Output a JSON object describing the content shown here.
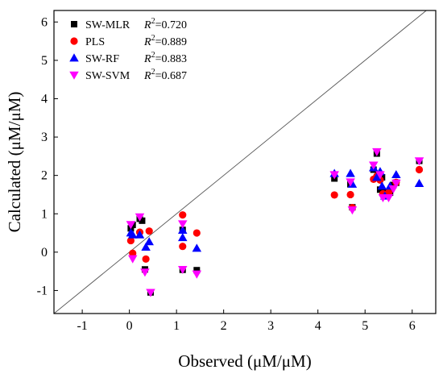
{
  "chart_data": {
    "type": "scatter",
    "xlabel": "Observed (μM/μM)",
    "ylabel": "Calculated (μM/μM)",
    "xlim": [
      -1.6,
      6.5
    ],
    "ylim": [
      -1.6,
      6.3
    ],
    "xticks": [
      -1,
      0,
      1,
      2,
      3,
      4,
      5,
      6
    ],
    "yticks": [
      -1,
      0,
      1,
      2,
      3,
      4,
      5,
      6
    ],
    "grid": false,
    "legend_position": "top-left",
    "reference_line": "y = x",
    "series": [
      {
        "name": "SW-MLR",
        "r2_label": "R",
        "r2_value": "=0.720",
        "marker": "square",
        "color": "#000000",
        "points": [
          [
            0.03,
            0.62
          ],
          [
            0.07,
            0.71
          ],
          [
            0.22,
            0.87
          ],
          [
            0.27,
            0.82
          ],
          [
            0.33,
            -0.45
          ],
          [
            0.45,
            -1.05
          ],
          [
            1.13,
            0.58
          ],
          [
            1.13,
            -0.46
          ],
          [
            1.43,
            -0.47
          ],
          [
            4.35,
            1.92
          ],
          [
            4.69,
            1.77
          ],
          [
            4.73,
            1.17
          ],
          [
            5.18,
            2.15
          ],
          [
            5.25,
            2.57
          ],
          [
            5.32,
            1.63
          ],
          [
            5.36,
            1.95
          ],
          [
            5.42,
            1.56
          ],
          [
            5.53,
            1.55
          ],
          [
            5.6,
            1.75
          ],
          [
            5.66,
            1.81
          ],
          [
            6.15,
            2.38
          ]
        ]
      },
      {
        "name": "PLS",
        "r2_label": "R",
        "r2_value": "=0.889",
        "marker": "circle",
        "color": "#ff0000",
        "points": [
          [
            0.03,
            0.3
          ],
          [
            0.07,
            -0.03
          ],
          [
            0.22,
            0.52
          ],
          [
            0.35,
            -0.18
          ],
          [
            0.42,
            0.55
          ],
          [
            1.13,
            0.97
          ],
          [
            1.13,
            0.15
          ],
          [
            1.43,
            0.5
          ],
          [
            4.35,
            1.49
          ],
          [
            4.69,
            1.5
          ],
          [
            4.73,
            1.16
          ],
          [
            5.18,
            1.9
          ],
          [
            5.25,
            1.98
          ],
          [
            5.32,
            1.88
          ],
          [
            5.38,
            1.52
          ],
          [
            5.5,
            1.55
          ],
          [
            5.66,
            1.82
          ],
          [
            6.15,
            2.15
          ]
        ]
      },
      {
        "name": "SW-RF",
        "r2_label": "R",
        "r2_value": "=0.883",
        "marker": "triangle-up",
        "color": "#0000ff",
        "points": [
          [
            0.03,
            0.5
          ],
          [
            0.07,
            0.45
          ],
          [
            0.22,
            0.45
          ],
          [
            0.35,
            0.13
          ],
          [
            0.42,
            0.27
          ],
          [
            1.13,
            0.38
          ],
          [
            1.13,
            0.57
          ],
          [
            1.43,
            0.1
          ],
          [
            4.35,
            2.05
          ],
          [
            4.69,
            2.05
          ],
          [
            4.73,
            1.77
          ],
          [
            5.18,
            2.2
          ],
          [
            5.25,
            1.95
          ],
          [
            5.32,
            2.1
          ],
          [
            5.36,
            1.72
          ],
          [
            5.42,
            1.46
          ],
          [
            5.53,
            1.72
          ],
          [
            5.66,
            2.02
          ],
          [
            6.15,
            1.79
          ]
        ]
      },
      {
        "name": "SW-SVM",
        "r2_label": "R",
        "r2_value": "=0.687",
        "marker": "triangle-down",
        "color": "#ff00ff",
        "points": [
          [
            0.03,
            0.72
          ],
          [
            0.07,
            -0.17
          ],
          [
            0.22,
            0.92
          ],
          [
            0.33,
            -0.52
          ],
          [
            0.45,
            -1.05
          ],
          [
            1.13,
            0.74
          ],
          [
            1.13,
            -0.45
          ],
          [
            1.43,
            -0.57
          ],
          [
            4.35,
            2.02
          ],
          [
            4.69,
            1.83
          ],
          [
            4.73,
            1.1
          ],
          [
            5.18,
            2.27
          ],
          [
            5.25,
            2.62
          ],
          [
            5.32,
            2.02
          ],
          [
            5.38,
            1.42
          ],
          [
            5.5,
            1.42
          ],
          [
            5.6,
            1.65
          ],
          [
            5.66,
            1.8
          ],
          [
            6.15,
            2.38
          ]
        ]
      }
    ]
  }
}
